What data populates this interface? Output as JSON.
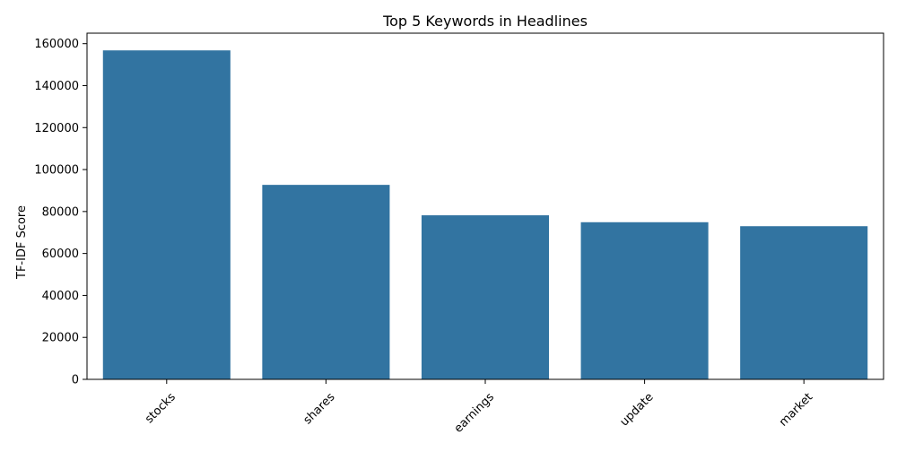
{
  "chart_data": {
    "type": "bar",
    "title": "Top 5 Keywords in Headlines",
    "xlabel": "",
    "ylabel": "TF-IDF Score",
    "categories": [
      "stocks",
      "shares",
      "earnings",
      "update",
      "market"
    ],
    "values": [
      156800,
      92700,
      78200,
      74900,
      73000
    ],
    "ylim": [
      0,
      165000
    ],
    "yticks": [
      0,
      20000,
      40000,
      60000,
      80000,
      100000,
      120000,
      140000,
      160000
    ],
    "ytick_labels": [
      "0",
      "20000",
      "40000",
      "60000",
      "80000",
      "100000",
      "120000",
      "140000",
      "160000"
    ],
    "x_tick_rotation": 45,
    "grid": false,
    "legend": "none",
    "bar_color": "#3274a1"
  }
}
